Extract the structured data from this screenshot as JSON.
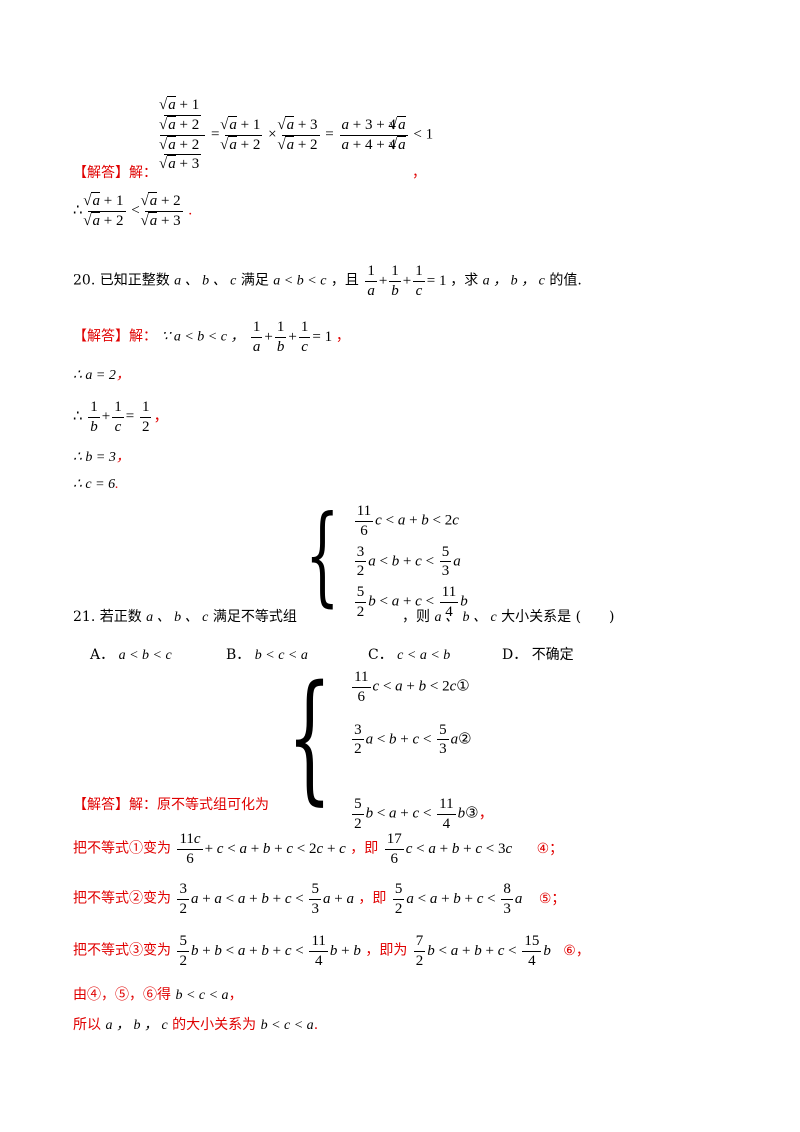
{
  "top_block": {
    "label": "【解答】解：",
    "eq": "(√a+1)/(√a+2) ÷ (√a+2)/(√a+3) = (√a+1)/(√a+2) × (√a+3)/(√a+2) = (a+3+4√a)/(a+4+4√a) < 1",
    "trail": "，",
    "therefore": "∴ (√a+1)/(√a+2) < (√a+2)/(√a+3)",
    "end": "."
  },
  "q20": {
    "number": "20.",
    "text1": "已知正整数",
    "vars": "a 、 b 、 c",
    "text2": "满足",
    "cond": "a < b < c",
    "text3": "，且",
    "eq": "1/a + 1/b + 1/c = 1",
    "text4": "，求",
    "text5": "的值.",
    "vars2": "a ， b ， c"
  },
  "a20": {
    "label": "【解答】解：",
    "line1": "∵ a < b < c ，",
    "eq": "1/a + 1/b + 1/c = 1",
    "line2": "∴ a = 2",
    "line3": "1/b + 1/c = 1/2",
    "line4": "∴ b = 3",
    "line5": "∴ c = 6",
    "comma": "，",
    "period": "."
  },
  "q21": {
    "number": "21.",
    "text1": "若正数",
    "vars": "a 、 b 、 c",
    "text2": "满足不等式组",
    "sys": [
      "11/6 c < a + b < 2c",
      "3/2 a < b + c < 5/3 a",
      "5/2 b < a + c < 11/4 b"
    ],
    "text3": "，则",
    "text4": "大小关系是",
    "paren": "(　　)",
    "options": [
      {
        "label": "A．",
        "value": "a < b < c"
      },
      {
        "label": "B．",
        "value": "b < c < a"
      },
      {
        "label": "C．",
        "value": "c < a < b"
      },
      {
        "label": "D．",
        "value": "不确定"
      }
    ]
  },
  "a21": {
    "label": "【解答】解：",
    "intro": "原不等式组可化为",
    "sys": [
      "11/6 c < a + b < 2c ①",
      "3/2 a < b + c < 5/3 a ②",
      "5/2 b < a + c < 11/4 b ③"
    ],
    "step1_pre": "把不等式①变为",
    "step1_eq": "11c/6 + c < a + b + c < 2c + c",
    "step1_mid": "，即",
    "step1_res": "17/6 c < a + b + c < 3c",
    "step1_tag": "④；",
    "step2_pre": "把不等式②变为",
    "step2_eq": "3/2 a + a < a + b + c < 5/3 a + a",
    "step2_mid": "，即",
    "step2_res": "5/2 a < a + b + c < 8/3 a",
    "step2_tag": "⑤；",
    "step3_pre": "把不等式③变为",
    "step3_eq": "5/2 b + b < a + b + c < 11/4 b + b",
    "step3_mid": "，即为",
    "step3_res": "7/2 b < a + b + c < 15/4 b",
    "step3_tag": "⑥，",
    "concl1_pre": "由④，⑤，⑥得",
    "concl1_eq": "b < c < a",
    "concl2_pre": "所以",
    "concl2_vars": "a ， b ， c",
    "concl2_mid": "的大小关系为",
    "concl2_eq": "b < c < a"
  }
}
